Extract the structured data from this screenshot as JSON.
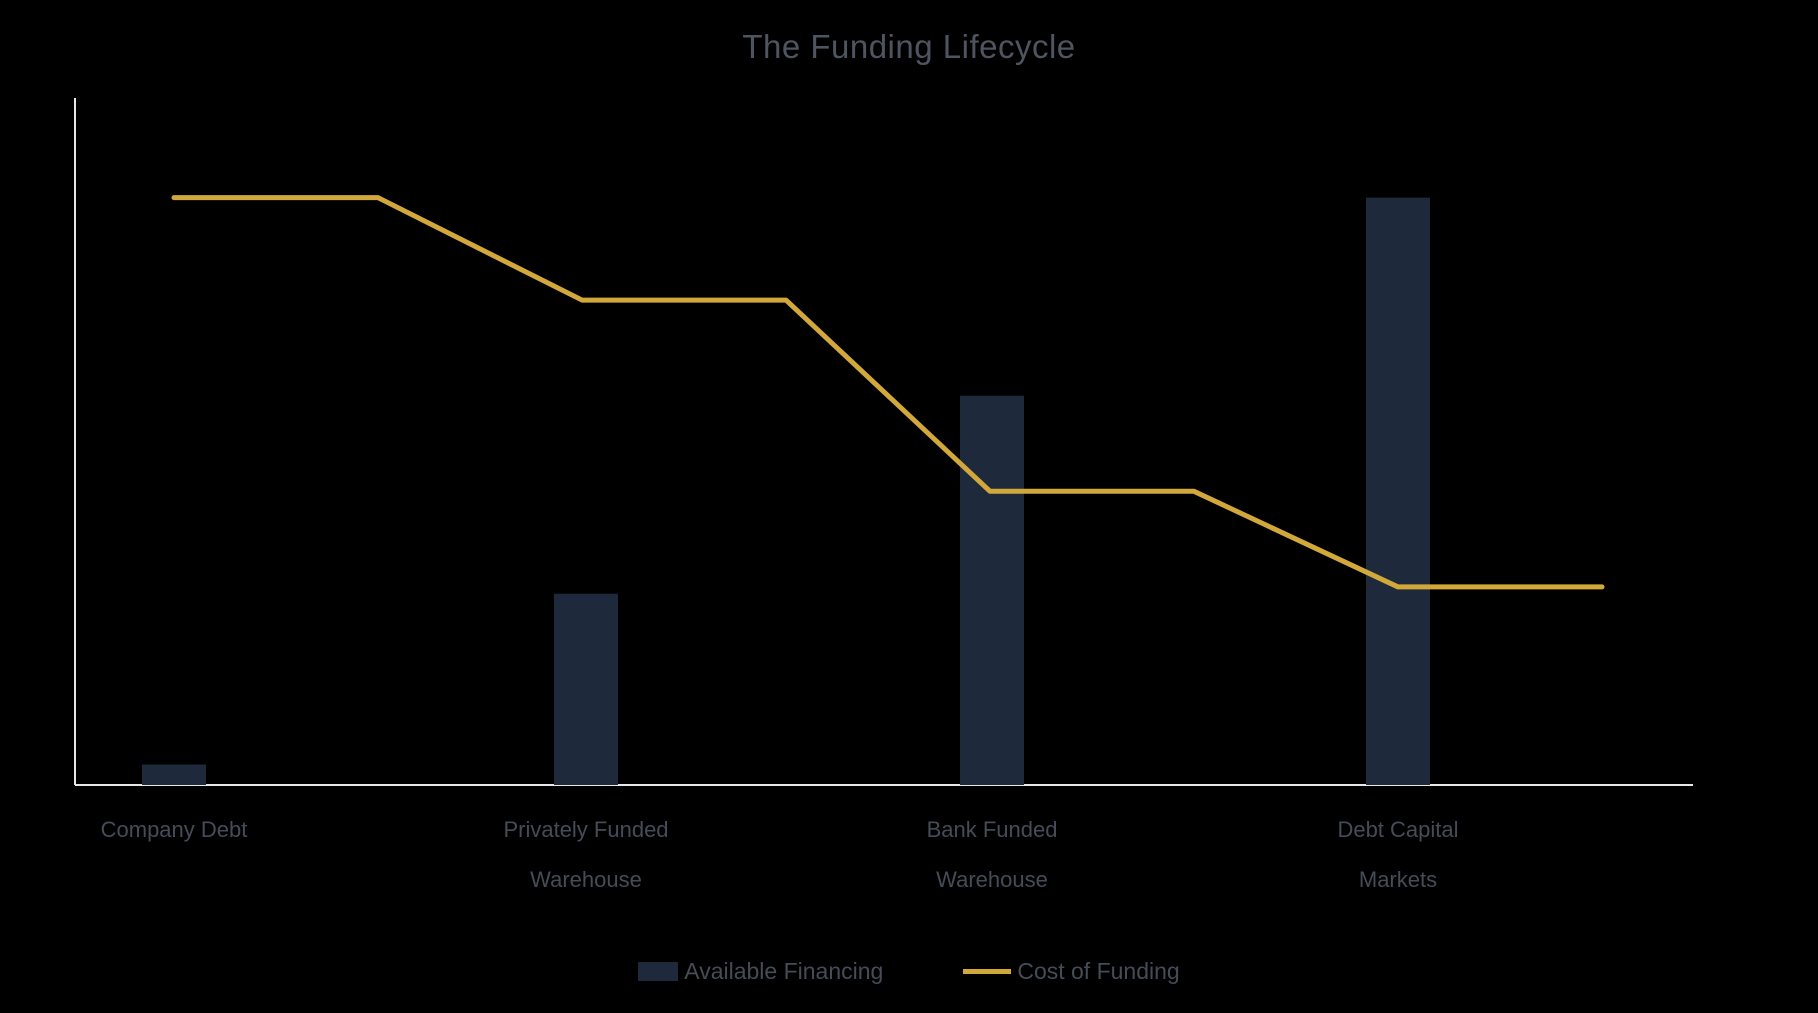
{
  "page": {
    "background": "#000000"
  },
  "chart_data": {
    "type": "combo (bar + line)",
    "title": "The Funding Lifecycle",
    "categories": [
      "Company Debt",
      "Privately Funded Warehouse",
      "Bank Funded Warehouse",
      "Debt Capital Markets"
    ],
    "category_lines": [
      [
        "Company Debt",
        ""
      ],
      [
        "Privately Funded",
        "Warehouse"
      ],
      [
        "Bank Funded",
        "Warehouse"
      ],
      [
        "Debt Capital",
        "Markets"
      ]
    ],
    "series": [
      {
        "name": "Available Financing",
        "type": "bar",
        "color": "#1e2a3c",
        "values": [
          3,
          28,
          57,
          86
        ]
      },
      {
        "name": "Cost of Funding",
        "type": "line",
        "color": "#d2a83a",
        "x": [
          0,
          0.5,
          1,
          1.5,
          2,
          2.5,
          3,
          3.5
        ],
        "values": [
          86,
          86,
          71,
          71,
          43,
          43,
          29,
          29
        ]
      }
    ],
    "xlabel": "",
    "ylabel": "",
    "ylim": [
      0,
      100
    ],
    "grid": false,
    "y_tick_labels_visible": false,
    "legend_position": "bottom",
    "axis_color": "#e8e8e8"
  }
}
